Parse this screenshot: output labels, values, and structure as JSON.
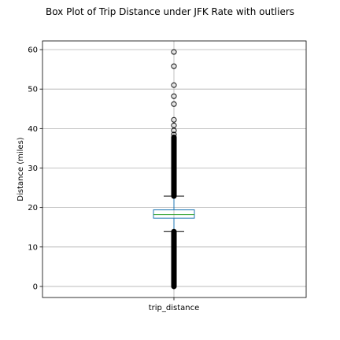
{
  "chart_data": {
    "type": "box",
    "title": "Box Plot of Trip Distance under JFK Rate with outliers",
    "xlabel": "",
    "ylabel": "Distance (miles)",
    "categories": [
      "trip_distance"
    ],
    "ylim": [
      -2.8,
      62.2
    ],
    "yticks": [
      0,
      10,
      20,
      30,
      40,
      50,
      60
    ],
    "grid": true,
    "box": {
      "whisker_low": 13.9,
      "q1": 17.3,
      "median": 18.2,
      "q3": 19.4,
      "whisker_high": 22.9
    },
    "outliers_high_sparse": [
      37.8,
      38.5,
      39.5,
      40.8,
      42.2,
      46.2,
      48.2,
      51.0,
      55.8,
      59.4
    ],
    "outliers_dense_ranges": [
      [
        0.0,
        13.9
      ],
      [
        22.9,
        37.6
      ]
    ],
    "colors": {
      "box": "#1f77b4",
      "median": "#2ca02c",
      "whisker": "#1f77b4",
      "cap": "#000000",
      "outlier": "#000000",
      "grid": "#b0b0b0"
    }
  }
}
